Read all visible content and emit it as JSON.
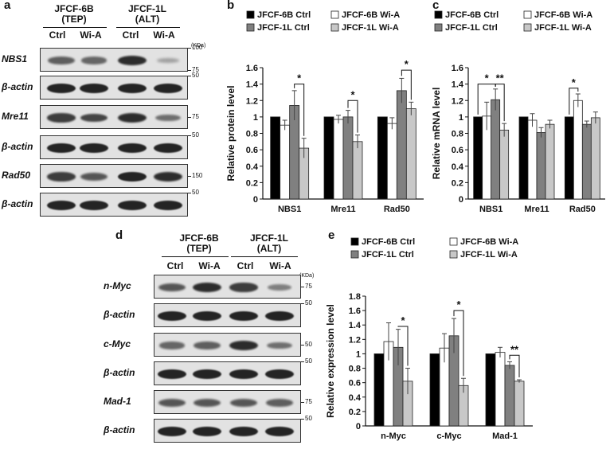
{
  "figure": {
    "panel_labels": [
      "a",
      "b",
      "c",
      "d",
      "e"
    ],
    "tick_labels": {
      "b": [
        "0",
        "0.2",
        "0.4",
        "0.6",
        "0.8",
        "1",
        "1.2",
        "1.4",
        "1.6"
      ],
      "c": [
        "0",
        "0.2",
        "0.4",
        "0.6",
        "0.8",
        "1",
        "1.2",
        "1.4",
        "1.6"
      ],
      "e": [
        "0",
        "0.2",
        "0.4",
        "0.6",
        "0.8",
        "1",
        "1.2",
        "1.4",
        "1.6",
        "1.8"
      ]
    }
  },
  "blot_a": {
    "header_left": [
      "JFCF-6B",
      "(TEP)"
    ],
    "header_right": [
      "JFCF-1L",
      "(ALT)"
    ],
    "lanes": [
      "Ctrl",
      "Wi-A",
      "Ctrl",
      "Wi-A"
    ],
    "kda": "(KDa)",
    "rows": [
      {
        "label": "NBS1",
        "markers": [
          "100",
          "75"
        ],
        "intensity": [
          0.55,
          0.5,
          0.85,
          0.15
        ]
      },
      {
        "label": "β-actin",
        "markers": [
          "50"
        ],
        "intensity": [
          0.9,
          0.9,
          0.9,
          0.9
        ]
      },
      {
        "label": "Mre11",
        "markers": [
          "75"
        ],
        "intensity": [
          0.75,
          0.7,
          0.85,
          0.45
        ]
      },
      {
        "label": "β-actin",
        "markers": [
          "50"
        ],
        "intensity": [
          0.9,
          0.9,
          0.9,
          0.9
        ]
      },
      {
        "label": "Rad50",
        "markers": [
          "150"
        ],
        "intensity": [
          0.75,
          0.6,
          0.9,
          0.85
        ]
      },
      {
        "label": "β-actin",
        "markers": [
          "50"
        ],
        "intensity": [
          0.9,
          0.9,
          0.9,
          0.9
        ]
      }
    ]
  },
  "blot_d": {
    "header_left": [
      "JFCF-6B",
      "(TEP)"
    ],
    "header_right": [
      "JFCF-1L",
      "(ALT)"
    ],
    "lanes": [
      "Ctrl",
      "Wi-A",
      "Ctrl",
      "Wi-A"
    ],
    "kda": "(KDa)",
    "rows": [
      {
        "label": "n-Myc",
        "markers": [
          "75"
        ],
        "intensity": [
          0.6,
          0.85,
          0.75,
          0.35
        ]
      },
      {
        "label": "β-actin",
        "markers": [
          "50"
        ],
        "intensity": [
          0.9,
          0.9,
          0.9,
          0.9
        ]
      },
      {
        "label": "c-Myc",
        "markers": [
          "50"
        ],
        "intensity": [
          0.5,
          0.55,
          0.85,
          0.45
        ]
      },
      {
        "label": "β-actin",
        "markers": [
          "50"
        ],
        "intensity": [
          0.9,
          0.9,
          0.9,
          0.9
        ]
      },
      {
        "label": "Mad-1",
        "markers": [
          "75"
        ],
        "intensity": [
          0.6,
          0.6,
          0.6,
          0.55
        ]
      },
      {
        "label": "β-actin",
        "markers": [
          "50"
        ],
        "intensity": [
          0.9,
          0.9,
          0.9,
          0.9
        ]
      }
    ]
  },
  "chart_data": [
    {
      "panel": "b",
      "type": "bar",
      "ylabel": "Relative protein level",
      "ylim": [
        0,
        1.6
      ],
      "categories": [
        "NBS1",
        "Mre11",
        "Rad50"
      ],
      "series": [
        {
          "name": "JFCF-6B Ctrl",
          "color": "#000000",
          "values": [
            1,
            1,
            1
          ],
          "errors": [
            0,
            0,
            0
          ]
        },
        {
          "name": "JFCF-6B Wi-A",
          "color": "#ffffff",
          "values": [
            0.9,
            0.97,
            0.92
          ],
          "errors": [
            0.06,
            0.05,
            0.07
          ]
        },
        {
          "name": "JFCF-1L Ctrl",
          "color": "#808080",
          "values": [
            1.14,
            1.0,
            1.32
          ],
          "errors": [
            0.18,
            0.08,
            0.15
          ]
        },
        {
          "name": "JFCF-1L Wi-A",
          "color": "#c8c8c8",
          "values": [
            0.62,
            0.7,
            1.1
          ],
          "errors": [
            0.12,
            0.08,
            0.08
          ]
        }
      ],
      "significance": [
        {
          "category": 0,
          "from": 2,
          "to": 3,
          "label": "*",
          "y": 1.4
        },
        {
          "category": 1,
          "from": 2,
          "to": 3,
          "label": "*",
          "y": 1.2
        },
        {
          "category": 2,
          "from": 2,
          "to": 3,
          "label": "*",
          "y": 1.57
        }
      ],
      "legend": "top"
    },
    {
      "panel": "c",
      "type": "bar",
      "ylabel": "Relative mRNA level",
      "ylim": [
        0,
        1.6
      ],
      "categories": [
        "NBS1",
        "Mre11",
        "Rad50"
      ],
      "series": [
        {
          "name": "JFCF-6B  Ctrl",
          "color": "#000000",
          "values": [
            1,
            1,
            1
          ],
          "errors": [
            0,
            0,
            0
          ]
        },
        {
          "name": "JFCF-6B  Wi-A",
          "color": "#ffffff",
          "values": [
            1.01,
            0.96,
            1.2
          ],
          "errors": [
            0.17,
            0.08,
            0.08
          ]
        },
        {
          "name": "JFCF-1L Ctrl",
          "color": "#808080",
          "values": [
            1.21,
            0.81,
            0.91
          ],
          "errors": [
            0.13,
            0.06,
            0.04
          ]
        },
        {
          "name": "JFCF-1L Wi-A",
          "color": "#c8c8c8",
          "values": [
            0.84,
            0.91,
            0.99
          ],
          "errors": [
            0.08,
            0.05,
            0.07
          ]
        }
      ],
      "significance": [
        {
          "category": 0,
          "from": 0,
          "to": 2,
          "label": "*",
          "y": 1.4
        },
        {
          "category": 0,
          "from": 2,
          "to": 3,
          "label": "**",
          "y": 1.4
        },
        {
          "category": 2,
          "from": 0,
          "to": 1,
          "label": "*",
          "y": 1.35
        }
      ],
      "legend": "top"
    },
    {
      "panel": "e",
      "type": "bar",
      "ylabel": "Relative expression level",
      "ylim": [
        0,
        1.8
      ],
      "categories": [
        "n-Myc",
        "c-Myc",
        "Mad-1"
      ],
      "series": [
        {
          "name": "JFCF-6B Ctrl",
          "color": "#000000",
          "values": [
            1,
            1,
            1
          ],
          "errors": [
            0,
            0,
            0
          ]
        },
        {
          "name": "JFCF-6B Wi-A",
          "color": "#ffffff",
          "values": [
            1.17,
            1.08,
            1.02
          ],
          "errors": [
            0.26,
            0.2,
            0.07
          ]
        },
        {
          "name": "JFCF-1L Ctrl",
          "color": "#808080",
          "values": [
            1.09,
            1.25,
            0.84
          ],
          "errors": [
            0.25,
            0.24,
            0.05
          ]
        },
        {
          "name": "JFCF-1L Wi-A",
          "color": "#c8c8c8",
          "values": [
            0.62,
            0.56,
            0.62
          ],
          "errors": [
            0.18,
            0.1,
            0.02
          ]
        }
      ],
      "significance": [
        {
          "category": 0,
          "from": 2,
          "to": 3,
          "label": "*",
          "y": 1.38
        },
        {
          "category": 1,
          "from": 2,
          "to": 3,
          "label": "*",
          "y": 1.6
        },
        {
          "category": 2,
          "from": 2,
          "to": 3,
          "label": "**",
          "y": 0.98
        }
      ],
      "legend": "top"
    }
  ]
}
